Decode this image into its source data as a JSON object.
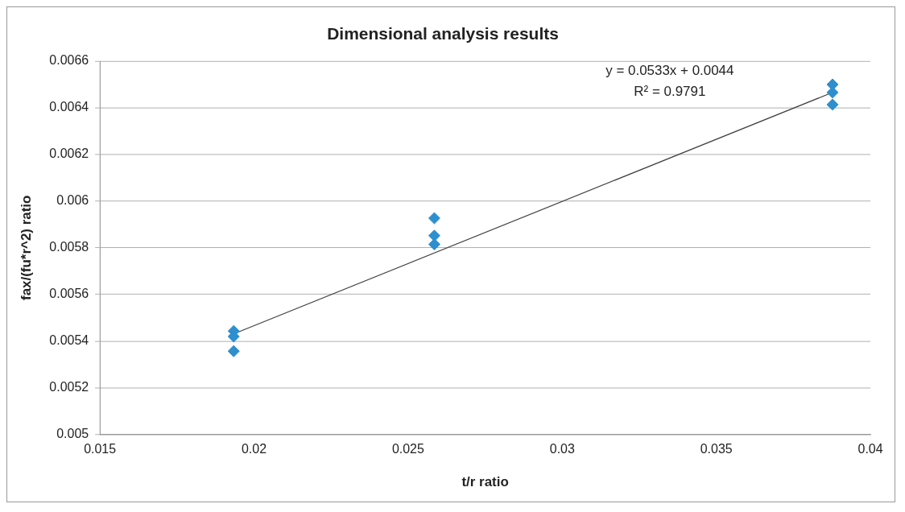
{
  "chart_data": {
    "type": "scatter",
    "title": "Dimensional analysis results",
    "xlabel": "t/r ratio",
    "ylabel": "fax/(fu*r^2) ratio",
    "series": [
      {
        "color": "#2e8fcf",
        "x": [
          0.01934,
          0.01934,
          0.01934,
          0.02585,
          0.02585,
          0.02585,
          0.03877,
          0.03877,
          0.03877
        ],
        "values": [
          0.005443,
          0.00542,
          0.005357,
          0.005927,
          0.005852,
          0.005815,
          0.0065,
          0.006466,
          0.006414
        ]
      },
      {
        "type": "line",
        "color": "#404040",
        "x": [
          0.01934,
          0.03877
        ],
        "values": [
          0.005431,
          0.006466
        ],
        "marker": "none"
      }
    ],
    "annotations": [
      "y = 0.0533x + 0.0044",
      "R² = 0.9791"
    ],
    "xlim": [
      0.015,
      0.04
    ],
    "xticks": [
      0.015,
      0.02,
      0.025,
      0.03,
      0.035,
      0.04
    ],
    "ylim": [
      0.005,
      0.0066
    ],
    "yticks": [
      0.005,
      0.0052,
      0.0054,
      0.0056,
      0.0058,
      0.006,
      0.0062,
      0.0064,
      0.0066
    ],
    "grid": "y",
    "legend": false,
    "marker": "diamond"
  }
}
